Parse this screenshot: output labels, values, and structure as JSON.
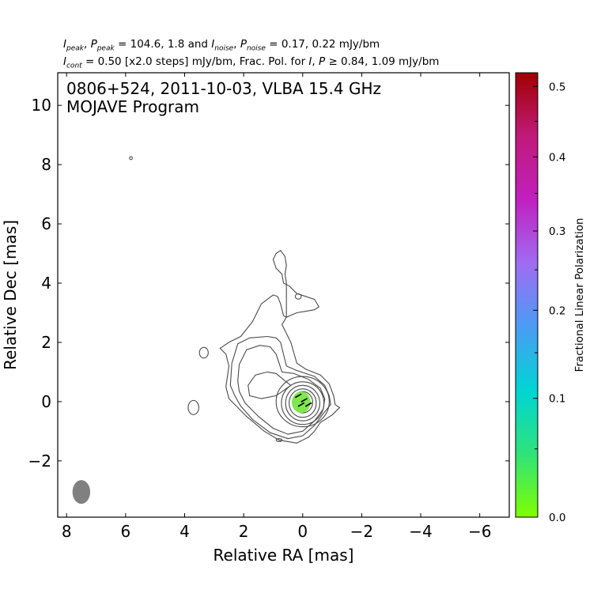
{
  "header": {
    "line1": {
      "i_label": "I",
      "i_sub": "peak",
      "p_label": "P",
      "p_sub": "peak",
      "values1": "104.6, 1.8",
      "i2_label": "I",
      "i2_sub": "noise",
      "p2_label": "P",
      "p2_sub": "noise",
      "values2": "0.17, 0.22 mJy/bm",
      "sep1": ", ",
      "eq1": " = ",
      "and": " and ",
      "eq2": " = "
    },
    "line2": {
      "i_label": "I",
      "i_sub": "cont",
      "text1": " = 0.50 [x2.0 steps] mJy/bm, Frac. Pol. for ",
      "i3_label": "I",
      "sep": ", ",
      "p3_label": "P",
      "text2": " ≥ 0.84, 1.09 mJy/bm"
    }
  },
  "chart_data": {
    "type": "contour",
    "source": "0806+524",
    "date": "2011-10-03",
    "instrument": "VLBA 15.4 GHz",
    "title_line1": "0806+524, 2011-10-03, VLBA 15.4 GHz",
    "title_line2": "MOJAVE Program",
    "xlabel": "Relative RA [mas]",
    "ylabel": "Relative Dec [mas]",
    "xlim": [
      8.3,
      -7.0
    ],
    "ylim": [
      -3.9,
      11.1
    ],
    "xticks": [
      8,
      6,
      4,
      2,
      0,
      -2,
      -4,
      -6
    ],
    "xtick_labels": [
      "8",
      "6",
      "4",
      "2",
      "0",
      "−2",
      "−4",
      "−6"
    ],
    "yticks": [
      -2,
      0,
      2,
      4,
      6,
      8,
      10
    ],
    "ytick_labels": [
      "−2",
      "0",
      "2",
      "4",
      "6",
      "8",
      "10"
    ],
    "contour_base_mJy_per_beam": 0.5,
    "contour_step": 2.0,
    "peak_mJy_per_beam": 104.6,
    "contours": [
      {
        "level": 1,
        "kind": "outer",
        "points": [
          [
            0.55,
            4.0
          ],
          [
            0.6,
            4.3
          ],
          [
            0.55,
            4.6
          ],
          [
            0.6,
            4.9
          ],
          [
            0.75,
            5.1
          ],
          [
            0.9,
            5.0
          ],
          [
            1.0,
            4.8
          ],
          [
            0.9,
            4.5
          ],
          [
            0.7,
            4.3
          ],
          [
            0.65,
            4.0
          ],
          [
            0.45,
            3.9
          ],
          [
            0.2,
            3.65
          ],
          [
            -0.4,
            3.45
          ],
          [
            -0.55,
            3.2
          ],
          [
            -0.4,
            3.1
          ],
          [
            0.2,
            3.0
          ],
          [
            0.55,
            2.85
          ],
          [
            0.7,
            2.6
          ],
          [
            0.4,
            2.0
          ],
          [
            0.2,
            1.3
          ],
          [
            -0.1,
            1.1
          ],
          [
            -0.6,
            0.9
          ],
          [
            -0.9,
            0.6
          ],
          [
            -1.05,
            0.2
          ],
          [
            -1.1,
            -0.1
          ],
          [
            -1.25,
            -0.2
          ],
          [
            -1.0,
            -0.45
          ],
          [
            -0.6,
            -0.7
          ],
          [
            -0.4,
            -1.0
          ],
          [
            -0.2,
            -1.2
          ],
          [
            0.2,
            -1.4
          ],
          [
            0.8,
            -1.3
          ],
          [
            1.3,
            -1.0
          ],
          [
            1.9,
            -0.5
          ],
          [
            2.2,
            -0.2
          ],
          [
            2.5,
            0.1
          ],
          [
            2.6,
            0.5
          ],
          [
            2.5,
            1.2
          ],
          [
            2.6,
            1.6
          ],
          [
            2.8,
            1.8
          ],
          [
            2.5,
            2.0
          ],
          [
            2.1,
            2.2
          ],
          [
            1.7,
            2.7
          ],
          [
            1.4,
            3.3
          ],
          [
            1.2,
            3.45
          ],
          [
            1.0,
            3.6
          ],
          [
            0.85,
            3.55
          ],
          [
            0.75,
            3.3
          ],
          [
            0.65,
            2.9
          ],
          [
            0.55,
            2.85
          ]
        ]
      },
      {
        "level": 2,
        "kind": "outer",
        "points": [
          [
            2.45,
            0.55
          ],
          [
            2.4,
            1.3
          ],
          [
            2.2,
            1.95
          ],
          [
            1.8,
            2.15
          ],
          [
            1.2,
            2.2
          ],
          [
            0.9,
            2.15
          ],
          [
            0.75,
            2.0
          ],
          [
            0.55,
            1.2
          ],
          [
            0.2,
            1.05
          ],
          [
            -0.4,
            0.85
          ],
          [
            -0.75,
            0.55
          ],
          [
            -0.9,
            0.2
          ],
          [
            -0.95,
            -0.1
          ],
          [
            -0.7,
            -0.4
          ],
          [
            -0.4,
            -0.8
          ],
          [
            0.0,
            -1.15
          ],
          [
            0.5,
            -1.25
          ],
          [
            1.1,
            -1.05
          ],
          [
            1.7,
            -0.6
          ],
          [
            2.1,
            -0.15
          ],
          [
            2.3,
            0.2
          ],
          [
            2.45,
            0.55
          ]
        ]
      },
      {
        "level": 3,
        "kind": "outer",
        "points": [
          [
            2.2,
            0.7
          ],
          [
            2.15,
            1.25
          ],
          [
            1.9,
            1.75
          ],
          [
            1.45,
            1.9
          ],
          [
            1.1,
            1.85
          ],
          [
            0.9,
            1.6
          ],
          [
            0.7,
            1.0
          ],
          [
            0.3,
            0.95
          ],
          [
            -0.2,
            0.75
          ],
          [
            -0.6,
            0.45
          ],
          [
            -0.75,
            0.1
          ],
          [
            -0.7,
            -0.25
          ],
          [
            -0.4,
            -0.65
          ],
          [
            0.0,
            -1.0
          ],
          [
            0.5,
            -1.1
          ],
          [
            1.0,
            -0.9
          ],
          [
            1.5,
            -0.5
          ],
          [
            1.95,
            -0.05
          ],
          [
            2.15,
            0.35
          ],
          [
            2.2,
            0.7
          ]
        ]
      },
      {
        "level": 4,
        "kind": "ring",
        "cx": 0.0,
        "cy": 0.0,
        "rx": 0.9,
        "ry": 0.85
      },
      {
        "level": 5,
        "kind": "ring",
        "cx": 0.0,
        "cy": -0.05,
        "rx": 0.72,
        "ry": 0.72
      },
      {
        "level": 6,
        "kind": "ring",
        "cx": 0.0,
        "cy": -0.05,
        "rx": 0.58,
        "ry": 0.6
      },
      {
        "level": 7,
        "kind": "ring",
        "cx": 0.0,
        "cy": -0.05,
        "rx": 0.46,
        "ry": 0.48
      },
      {
        "level": 8,
        "kind": "ring",
        "cx": 0.0,
        "cy": -0.02,
        "rx": 0.34,
        "ry": 0.36
      },
      {
        "level": 9,
        "kind": "ring",
        "cx": 0.0,
        "cy": 0.0,
        "rx": 0.22,
        "ry": 0.24
      },
      {
        "level": 1,
        "kind": "island",
        "cx": 3.35,
        "cy": 1.65,
        "rx": 0.15,
        "ry": 0.18
      },
      {
        "level": 1,
        "kind": "island",
        "cx": 3.7,
        "cy": -0.2,
        "rx": 0.18,
        "ry": 0.24
      },
      {
        "level": 1,
        "kind": "island",
        "cx": 0.15,
        "cy": 3.55,
        "rx": 0.1,
        "ry": 0.09
      },
      {
        "level": 1,
        "kind": "island",
        "cx": 0.8,
        "cy": -1.3,
        "rx": 0.1,
        "ry": 0.05
      },
      {
        "level": 1,
        "kind": "island",
        "cx": 5.82,
        "cy": 8.22,
        "rx": 0.05,
        "ry": 0.05
      }
    ],
    "inner_loops": [
      {
        "points": [
          [
            1.85,
            0.55
          ],
          [
            1.6,
            0.9
          ],
          [
            1.2,
            1.0
          ],
          [
            0.9,
            0.95
          ],
          [
            0.6,
            0.7
          ],
          [
            0.4,
            0.55
          ],
          [
            0.9,
            0.2
          ],
          [
            1.4,
            0.1
          ],
          [
            1.8,
            0.2
          ],
          [
            1.85,
            0.55
          ]
        ]
      }
    ],
    "polarization_patch": {
      "cx": 0.05,
      "cy": -0.02,
      "rx": 0.32,
      "ry": 0.36,
      "fractional_pol": 0.03
    },
    "evpa_ticks": [
      {
        "x": 0.15,
        "y": 0.2,
        "angle_deg": 30
      },
      {
        "x": -0.05,
        "y": 0.05,
        "angle_deg": 30
      },
      {
        "x": 0.05,
        "y": -0.1,
        "angle_deg": 30
      },
      {
        "x": -0.2,
        "y": -0.1,
        "angle_deg": 30
      }
    ],
    "beam": {
      "cx": 7.5,
      "cy": -3.05,
      "major_mas": 0.8,
      "minor_mas": 0.6,
      "pa_deg": 0
    },
    "colorbar": {
      "label": "Fractional Linear Polarization",
      "min": 0.0,
      "max": 0.52,
      "ticks": [
        0.0,
        0.1,
        0.2,
        0.3,
        0.4,
        0.5
      ],
      "tick_labels": [
        "0.0",
        "0.1",
        "0.2",
        "0.3",
        "0.4",
        "0.5"
      ],
      "scale": "power",
      "colors": [
        "#7fff00",
        "#2ee37a",
        "#00d4d4",
        "#4a9cf5",
        "#a06cf2",
        "#c020c0",
        "#c01a7a",
        "#a00000"
      ]
    },
    "contour_color": "#4a4a4a",
    "beam_color": "#808080",
    "pol_color": "#7ee84e"
  }
}
